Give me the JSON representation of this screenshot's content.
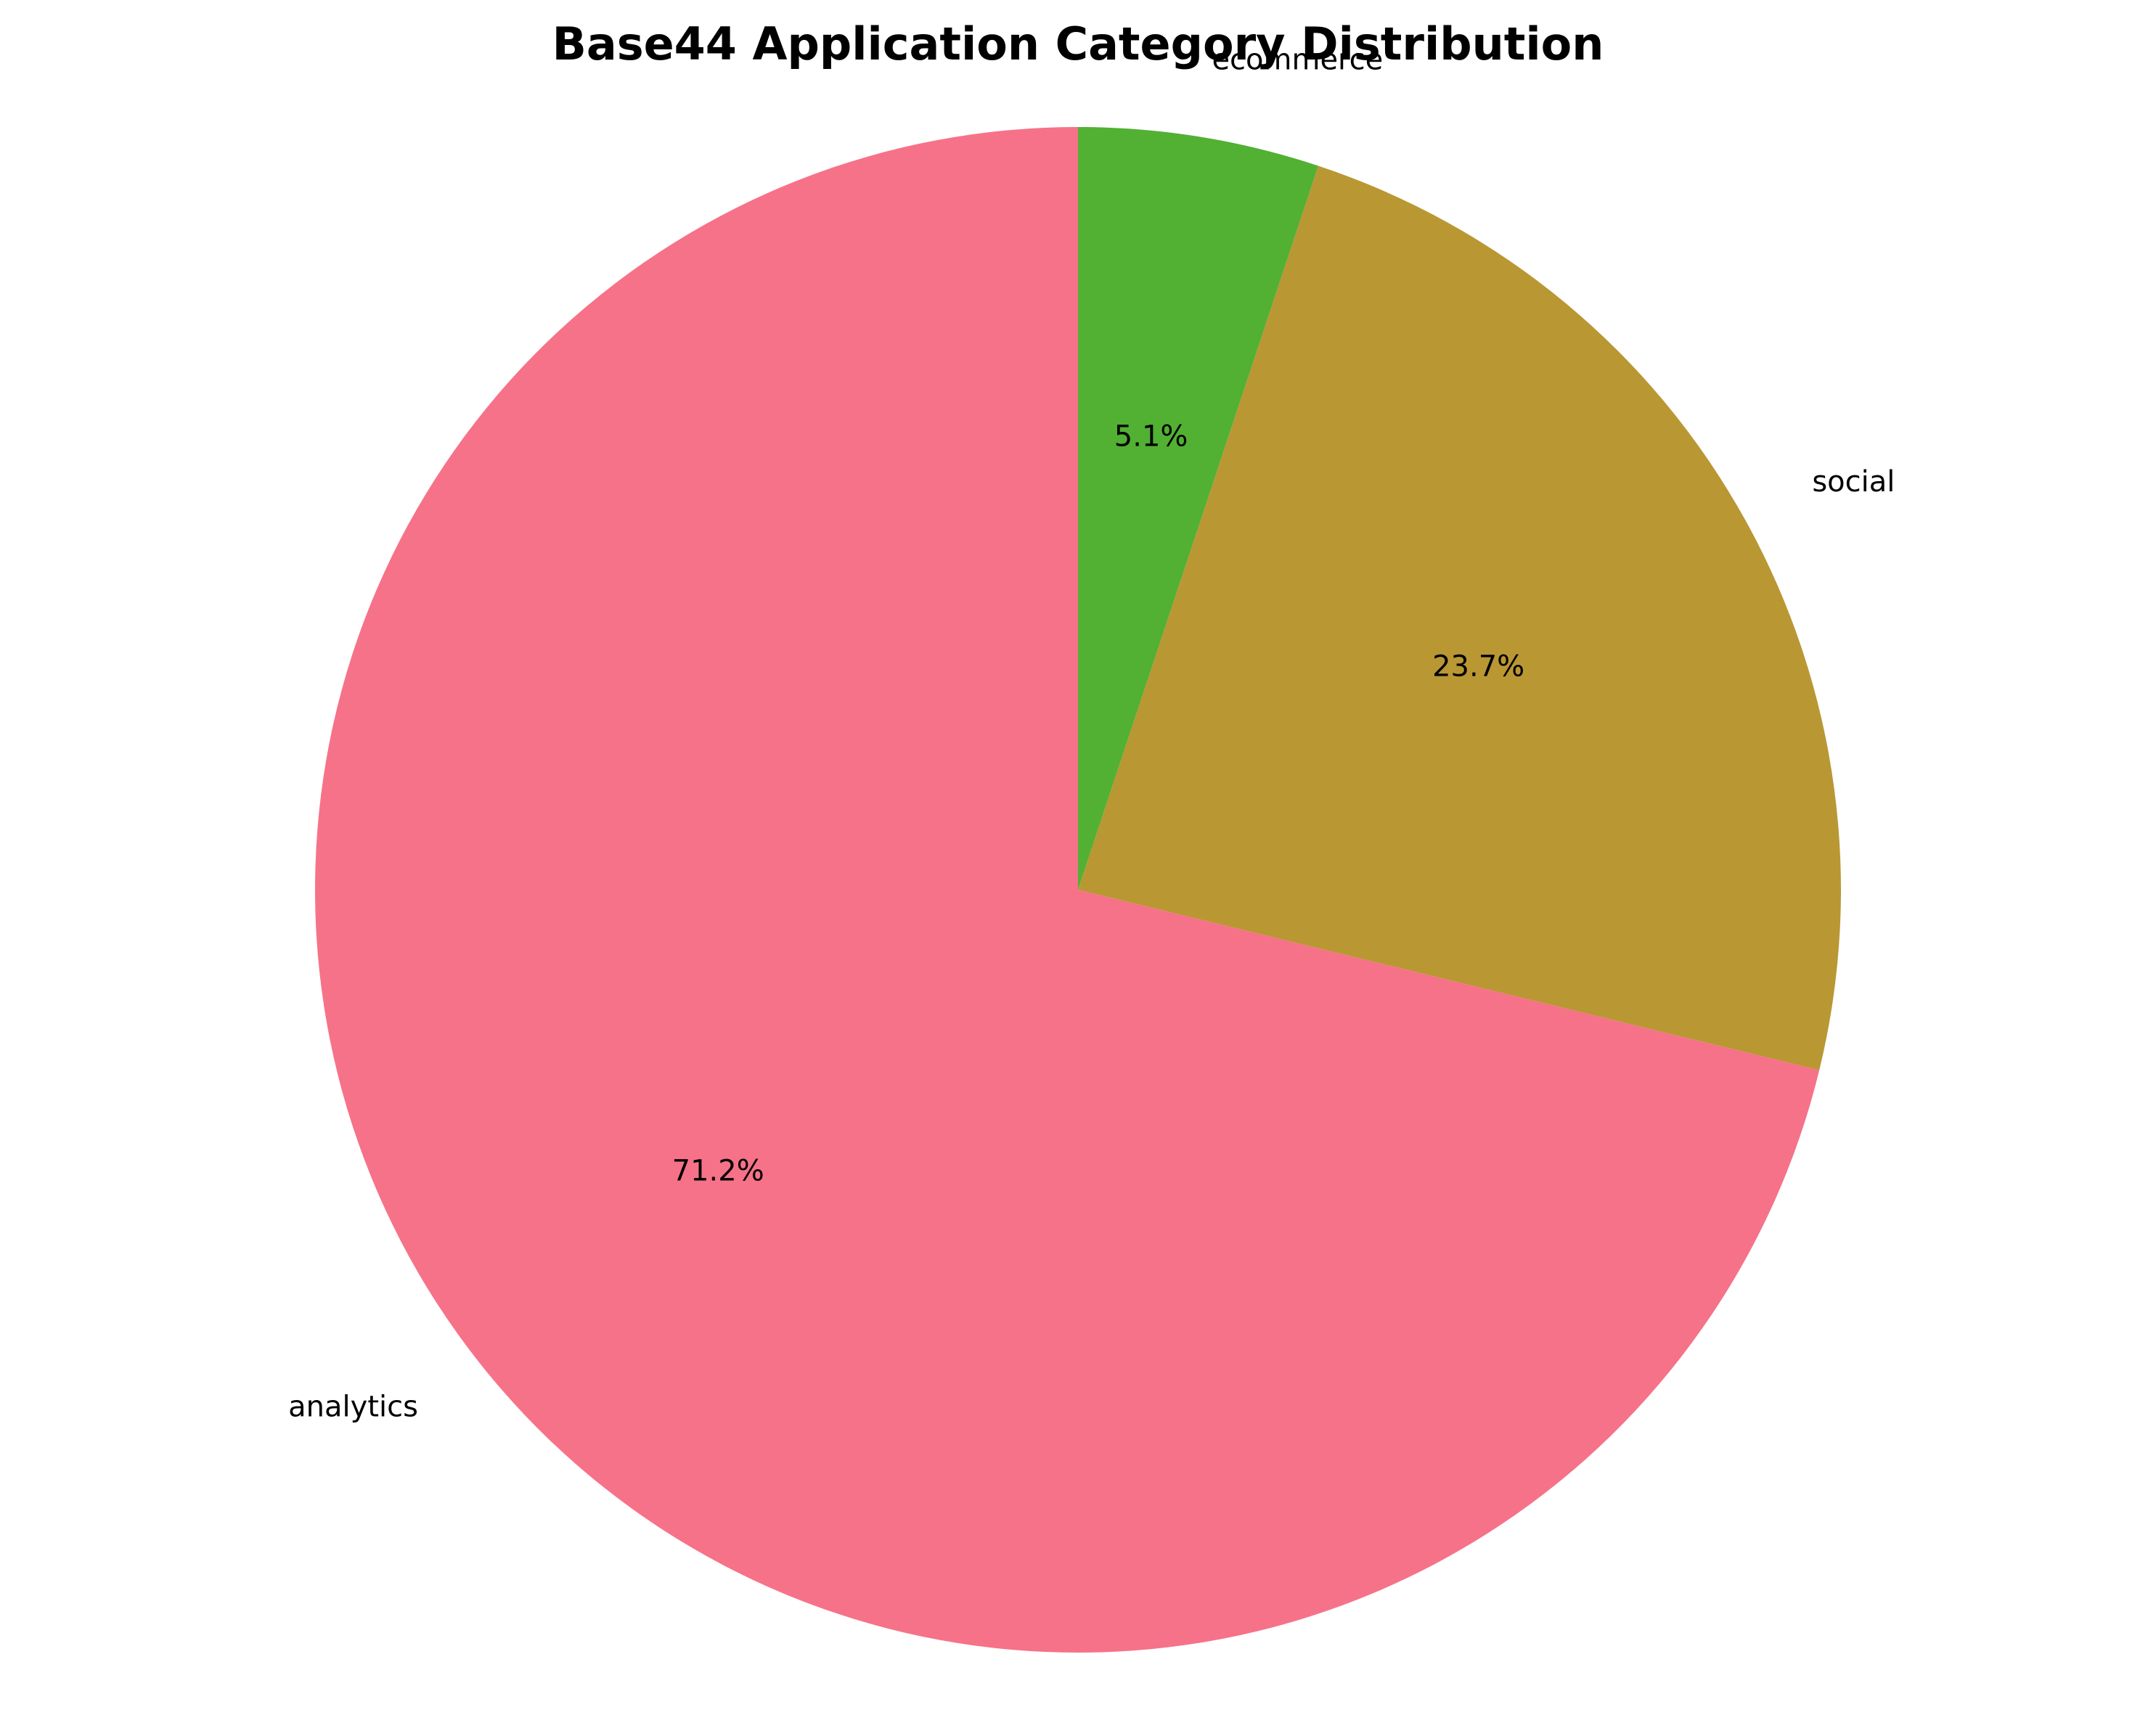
{
  "chart_data": {
    "type": "pie",
    "title": "Base44 Application Category Distribution",
    "start_angle": "top, clockwise from ecommerce",
    "slices": [
      {
        "label": "ecommerce",
        "value": 5.1,
        "pct_label": "5.1%",
        "color": "#52b033"
      },
      {
        "label": "social",
        "value": 23.7,
        "pct_label": "23.7%",
        "color": "#b99733"
      },
      {
        "label": "analytics",
        "value": 71.2,
        "pct_label": "71.2%",
        "color": "#f67288"
      }
    ]
  }
}
